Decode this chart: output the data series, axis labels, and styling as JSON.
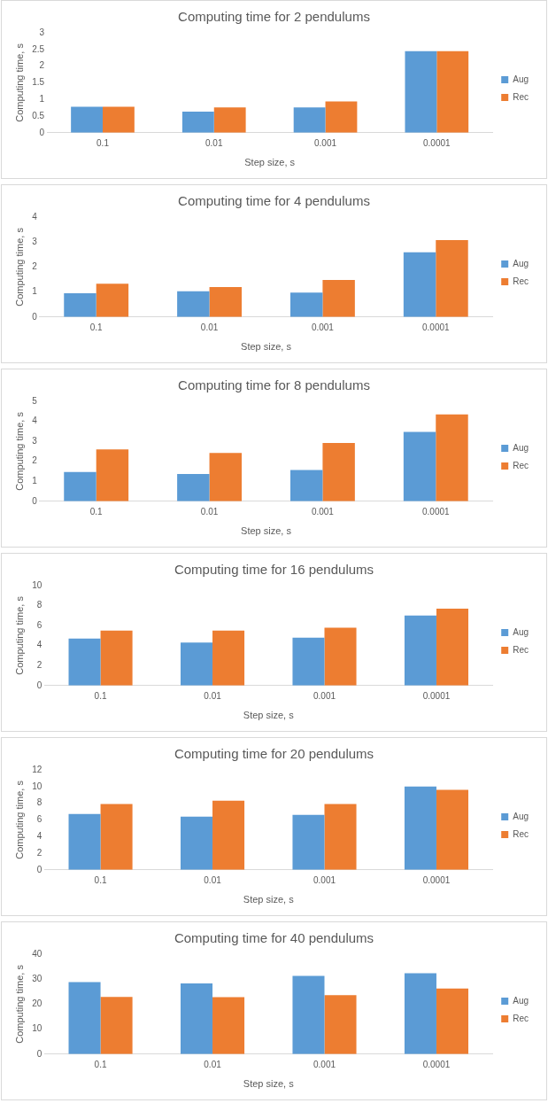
{
  "chart_data": [
    {
      "type": "bar",
      "title": "Computing time for 2 pendulums",
      "xlabel": "Step size, s",
      "ylabel": "Computing time, s",
      "categories": [
        "0.1",
        "0.01",
        "0.001",
        "0.0001"
      ],
      "series": [
        {
          "name": "Aug",
          "color": "#5b9bd5",
          "values": [
            0.78,
            0.63,
            0.76,
            2.45
          ]
        },
        {
          "name": "Rec",
          "color": "#ed7d31",
          "values": [
            0.78,
            0.76,
            0.94,
            2.45
          ]
        }
      ],
      "ylim": [
        0,
        3
      ],
      "yticks": [
        0,
        0.5,
        1,
        1.5,
        2,
        2.5,
        3
      ],
      "grid": false,
      "legend": "right"
    },
    {
      "type": "bar",
      "title": "Computing time for 4 pendulums",
      "xlabel": "Step size, s",
      "ylabel": "Computing time, s",
      "categories": [
        "0.1",
        "0.01",
        "0.001",
        "0.0001"
      ],
      "series": [
        {
          "name": "Aug",
          "color": "#5b9bd5",
          "values": [
            0.95,
            1.03,
            0.98,
            2.59
          ]
        },
        {
          "name": "Rec",
          "color": "#ed7d31",
          "values": [
            1.33,
            1.2,
            1.48,
            3.08
          ]
        }
      ],
      "ylim": [
        0,
        4
      ],
      "yticks": [
        0,
        1,
        2,
        3,
        4
      ],
      "grid": false,
      "legend": "right"
    },
    {
      "type": "bar",
      "title": "Computing time for 8 pendulums",
      "xlabel": "Step size, s",
      "ylabel": "Computing time, s",
      "categories": [
        "0.1",
        "0.01",
        "0.001",
        "0.0001"
      ],
      "series": [
        {
          "name": "Aug",
          "color": "#5b9bd5",
          "values": [
            1.47,
            1.37,
            1.57,
            3.47
          ]
        },
        {
          "name": "Rec",
          "color": "#ed7d31",
          "values": [
            2.6,
            2.42,
            2.92,
            4.35
          ]
        }
      ],
      "ylim": [
        0,
        5
      ],
      "yticks": [
        0,
        1,
        2,
        3,
        4,
        5
      ],
      "grid": false,
      "legend": "right"
    },
    {
      "type": "bar",
      "title": "Computing time for 16 pendulums",
      "xlabel": "Step size, s",
      "ylabel": "Computing time, s",
      "categories": [
        "0.1",
        "0.01",
        "0.001",
        "0.0001"
      ],
      "series": [
        {
          "name": "Aug",
          "color": "#5b9bd5",
          "values": [
            4.7,
            4.3,
            4.8,
            7.0
          ]
        },
        {
          "name": "Rec",
          "color": "#ed7d31",
          "values": [
            5.5,
            5.5,
            5.8,
            7.7
          ]
        }
      ],
      "ylim": [
        0,
        10
      ],
      "yticks": [
        0,
        2,
        4,
        6,
        8,
        10
      ],
      "grid": false,
      "legend": "right"
    },
    {
      "type": "bar",
      "title": "Computing time for 20 pendulums",
      "xlabel": "Step size, s",
      "ylabel": "Computing time, s",
      "categories": [
        "0.1",
        "0.01",
        "0.001",
        "0.0001"
      ],
      "series": [
        {
          "name": "Aug",
          "color": "#5b9bd5",
          "values": [
            6.7,
            6.4,
            6.6,
            10.0
          ]
        },
        {
          "name": "Rec",
          "color": "#ed7d31",
          "values": [
            7.9,
            8.3,
            7.9,
            9.6
          ]
        }
      ],
      "ylim": [
        0,
        12
      ],
      "yticks": [
        0,
        2,
        4,
        6,
        8,
        10,
        12
      ],
      "grid": false,
      "legend": "right"
    },
    {
      "type": "bar",
      "title": "Computing time for 40 pendulums",
      "xlabel": "Step size, s",
      "ylabel": "Computing time, s",
      "categories": [
        "0.1",
        "0.01",
        "0.001",
        "0.0001"
      ],
      "series": [
        {
          "name": "Aug",
          "color": "#5b9bd5",
          "values": [
            28.8,
            28.3,
            31.3,
            32.4
          ]
        },
        {
          "name": "Rec",
          "color": "#ed7d31",
          "values": [
            22.9,
            22.8,
            23.6,
            26.3
          ]
        }
      ],
      "ylim": [
        0,
        40
      ],
      "yticks": [
        0,
        10,
        20,
        30,
        40
      ],
      "grid": false,
      "legend": "right"
    }
  ]
}
